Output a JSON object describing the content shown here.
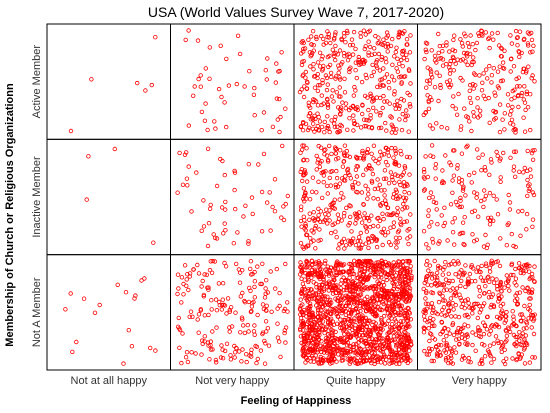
{
  "chart_data": {
    "type": "scatter",
    "subtype": "jittered-categorical",
    "title": "USA (World Values Survey Wave 7, 2017-2020)",
    "xlabel": "Feeling of Happiness",
    "ylabel": "Membership of Church or Religious Organizationn",
    "x_categories": [
      "Not at all happy",
      "Not very happy",
      "Quite happy",
      "Very happy"
    ],
    "y_categories": [
      "Not A Member",
      "Inactive Member",
      "Active Member"
    ],
    "point_color": "#ff0000",
    "grid": false,
    "cells": [
      {
        "x": "Not at all happy",
        "y": "Not A Member",
        "count": 18
      },
      {
        "x": "Not very happy",
        "y": "Not A Member",
        "count": 200
      },
      {
        "x": "Quite happy",
        "y": "Not A Member",
        "count": 1500
      },
      {
        "x": "Very happy",
        "y": "Not A Member",
        "count": 500
      },
      {
        "x": "Not at all happy",
        "y": "Inactive Member",
        "count": 4
      },
      {
        "x": "Not very happy",
        "y": "Inactive Member",
        "count": 60
      },
      {
        "x": "Quite happy",
        "y": "Inactive Member",
        "count": 400
      },
      {
        "x": "Very happy",
        "y": "Inactive Member",
        "count": 170
      },
      {
        "x": "Not at all happy",
        "y": "Active Member",
        "count": 6
      },
      {
        "x": "Not very happy",
        "y": "Active Member",
        "count": 50
      },
      {
        "x": "Quite happy",
        "y": "Active Member",
        "count": 400
      },
      {
        "x": "Very happy",
        "y": "Active Member",
        "count": 250
      }
    ]
  }
}
